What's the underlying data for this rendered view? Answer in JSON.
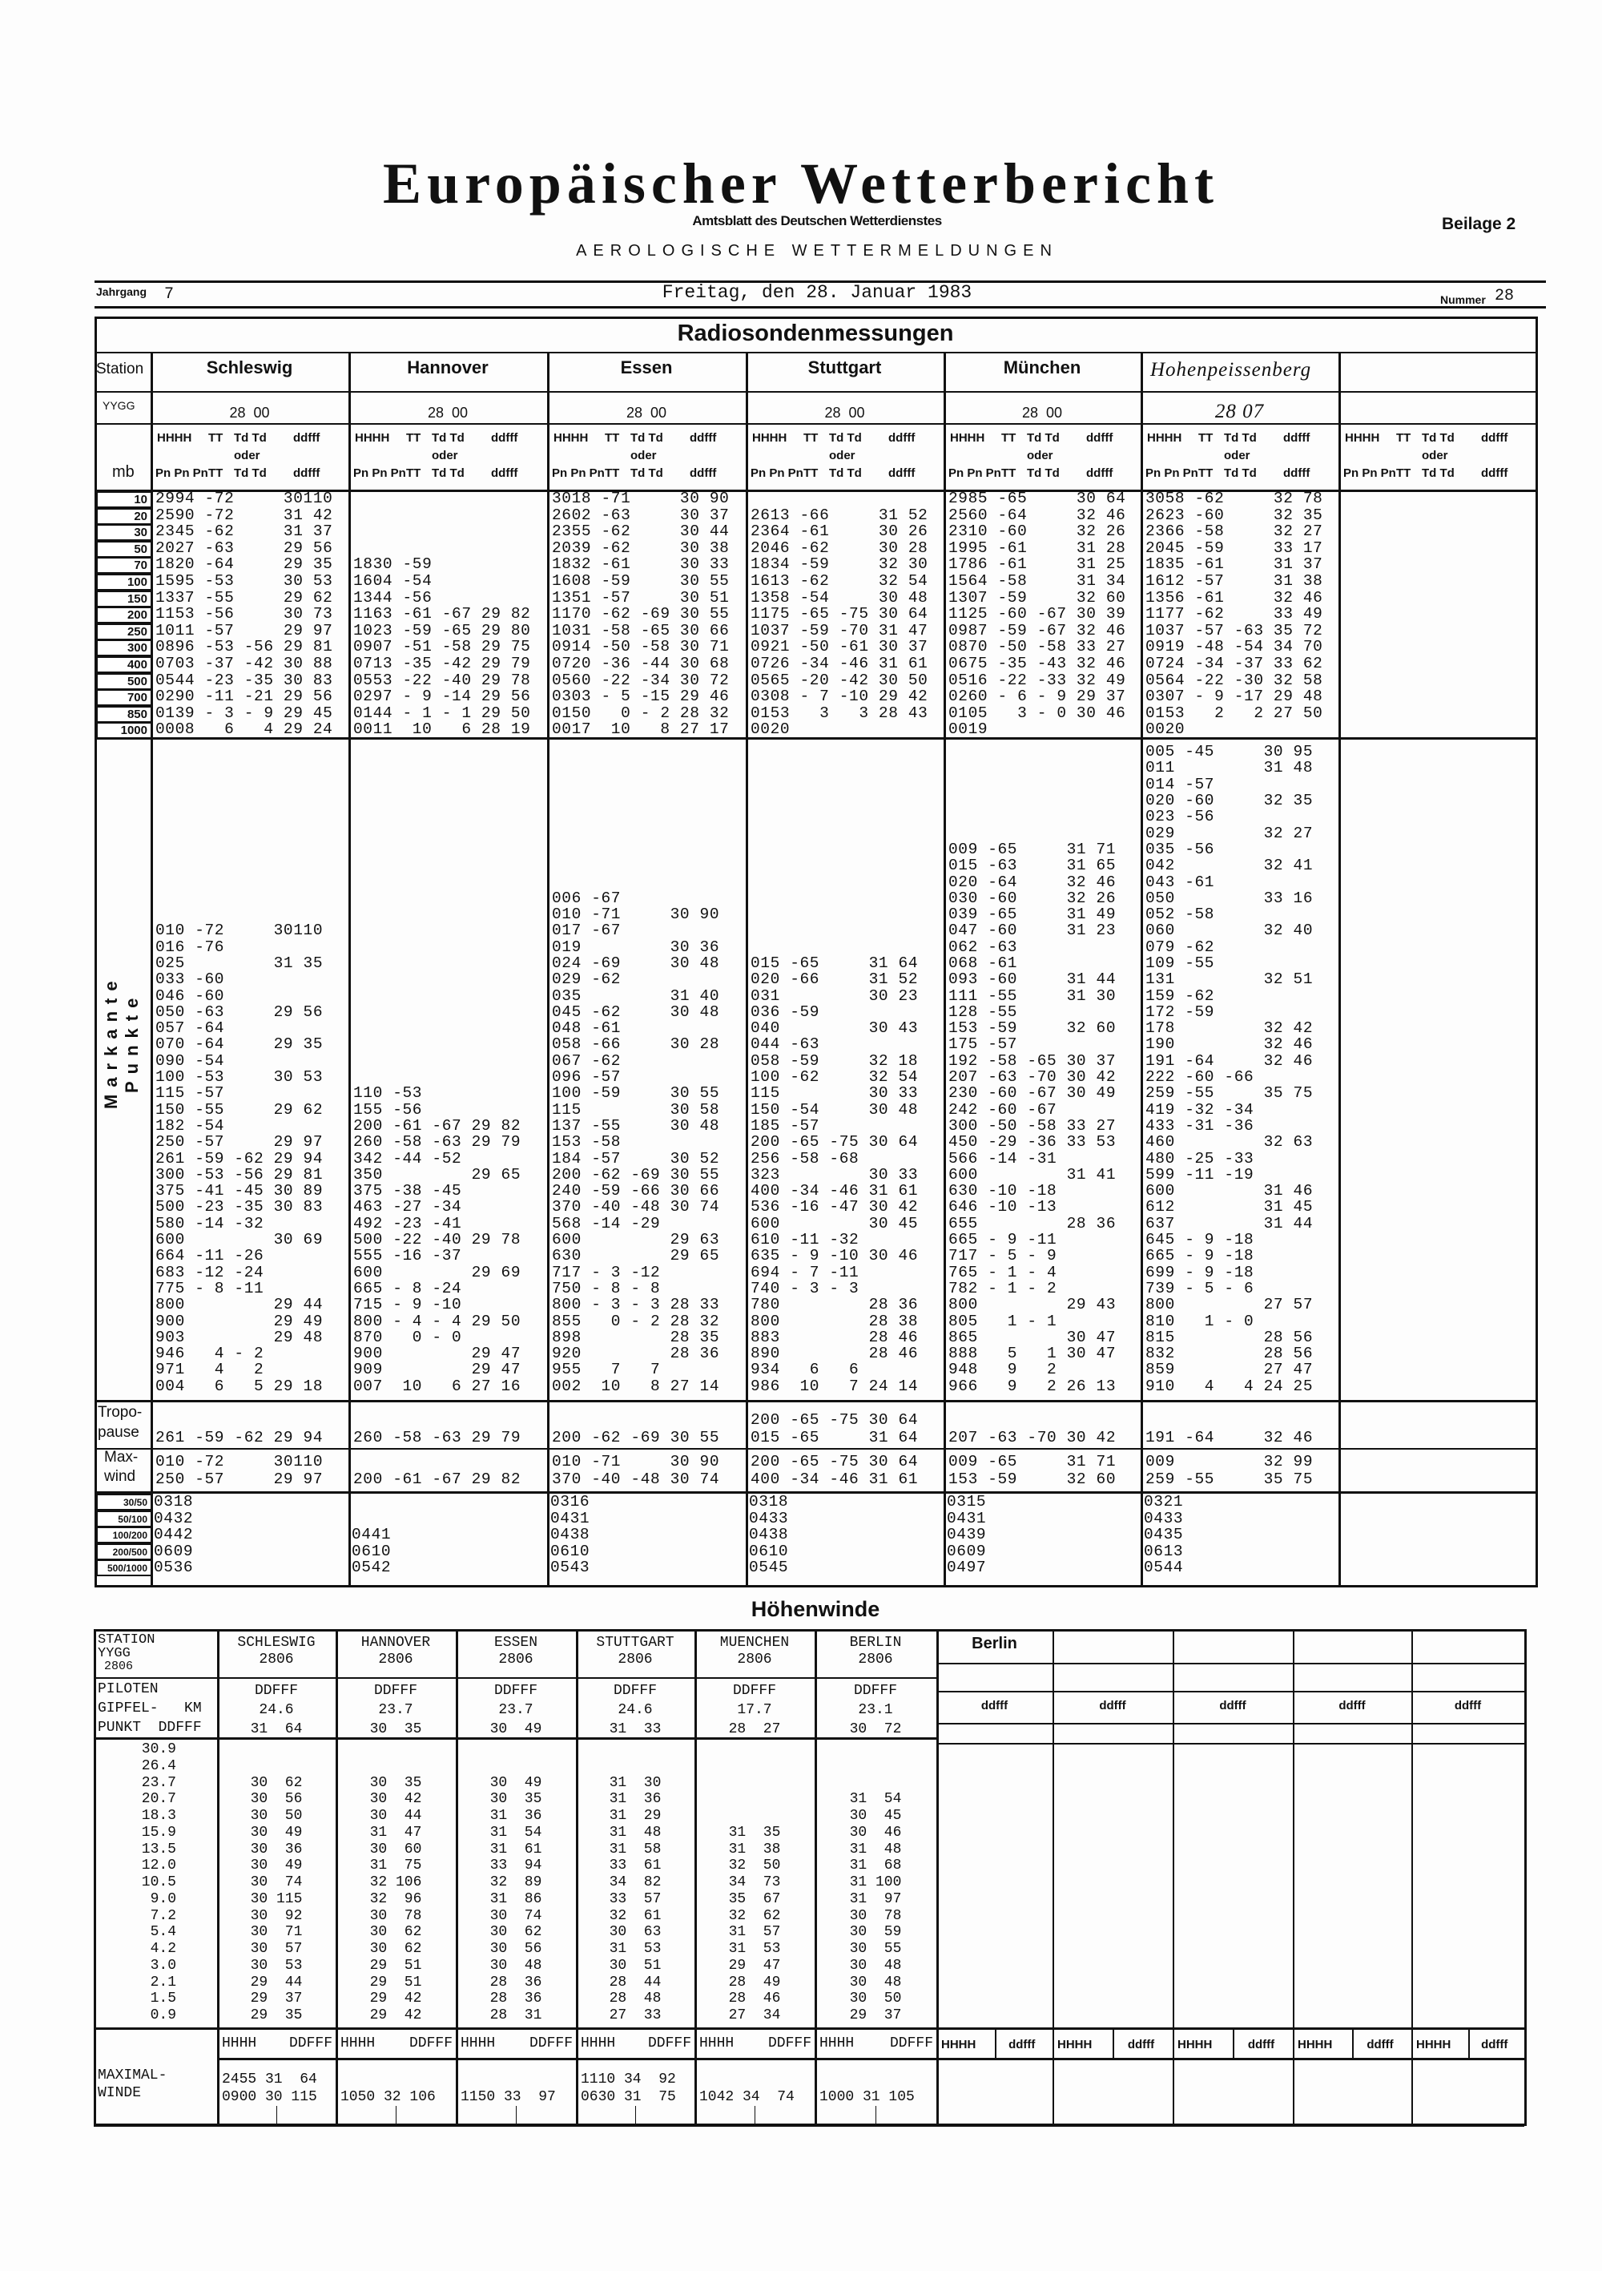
{
  "header": {
    "title": "Europäischer Wetterbericht",
    "subtitle": "Amtsblatt des Deutschen Wetterdienstes",
    "supplement": "Beilage 2",
    "section_heading": "AEROLOGISCHE WETTERMELDUNGEN",
    "volume_label": "Jahrgang",
    "volume": "7",
    "date": "Freitag, den 28. Januar 1983",
    "number_label": "Nummer",
    "number": "28"
  },
  "radiosonde": {
    "title": "Radiosondenmessungen",
    "label_station": "Station",
    "label_yygg": "YYGG",
    "label_mb": "mb",
    "col_headers": {
      "line1": [
        "HHHH",
        "TT",
        "Td Td",
        "ddfff"
      ],
      "oder": "oder",
      "line2": [
        "Pn Pn Pn",
        "TT",
        "Td Td",
        "ddfff"
      ]
    },
    "levels": [
      "10",
      "20",
      "30",
      "50",
      "70",
      "100",
      "150",
      "200",
      "250",
      "300",
      "400",
      "500",
      "700",
      "850",
      "1000"
    ],
    "markante_label": "Markante Punkte",
    "tropopause_label": [
      "Tropo-",
      "pause"
    ],
    "maxwind_label": [
      "Max-",
      "wind"
    ],
    "layer_labels": [
      "30/50",
      "50/100",
      "100/200",
      "200/500",
      "500/1000"
    ],
    "stations": [
      {
        "name": "Schleswig",
        "yygg": "28  00",
        "standard": [
          "2994 -72     30110",
          "2590 -72     31 42",
          "2345 -62     31 37",
          "2027 -63     29 56",
          "1820 -64     29 35",
          "1595 -53     30 53",
          "1337 -55     29 62",
          "1153 -56     30 73",
          "1011 -57     29 97",
          "0896 -53 -56 29 81",
          "0703 -37 -42 30 88",
          "0544 -23 -35 30 83",
          "0290 -11 -21 29 56",
          "0139 - 3 - 9 29 45",
          "0008   6   4 29 24"
        ],
        "markante": [
          "010 -72     30110",
          "016 -76",
          "025         31 35",
          "033 -60",
          "046 -60",
          "050 -63     29 56",
          "057 -64",
          "070 -64     29 35",
          "090 -54",
          "100 -53     30 53",
          "115 -57",
          "150 -55     29 62",
          "182 -54",
          "250 -57     29 97",
          "261 -59 -62 29 94",
          "300 -53 -56 29 81",
          "375 -41 -45 30 89",
          "500 -23 -35 30 83",
          "580 -14 -32",
          "600         30 69",
          "664 -11 -26",
          "683 -12 -24",
          "775 - 8 -11",
          "800         29 44",
          "900         29 49",
          "903         29 48",
          "946   4 - 2",
          "971   4   2",
          "004   6   5 29 18"
        ],
        "tropopause": [
          "261 -59 -62 29 94"
        ],
        "maxwind": [
          "010 -72     30110",
          "250 -57     29 97"
        ],
        "layers": [
          "0318",
          "0432",
          "0442",
          "0609",
          "0536"
        ]
      },
      {
        "name": "Hannover",
        "yygg": "28  00",
        "standard": [
          "",
          "",
          "",
          "",
          "1830 -59",
          "1604 -54",
          "1344 -56",
          "1163 -61 -67 29 82",
          "1023 -59 -65 29 80",
          "0907 -51 -58 29 75",
          "0713 -35 -42 29 79",
          "0553 -22 -40 29 78",
          "0297 - 9 -14 29 56",
          "0144 - 1 - 1 29 50",
          "0011  10   6 28 19"
        ],
        "markante": [
          "110 -53",
          "155 -56",
          "200 -61 -67 29 82",
          "260 -58 -63 29 79",
          "342 -44 -52",
          "350         29 65",
          "375 -38 -45",
          "463 -27 -34",
          "492 -23 -41",
          "500 -22 -40 29 78",
          "555 -16 -37",
          "600         29 69",
          "665 - 8 -24",
          "715 - 9 -10",
          "800 - 4 - 4 29 50",
          "870   0 - 0",
          "900         29 47",
          "909         29 47",
          "007  10   6 27 16"
        ],
        "tropopause": [
          "260 -58 -63 29 79"
        ],
        "maxwind": [
          "",
          "200 -61 -67 29 82"
        ],
        "layers": [
          "",
          "",
          "0441",
          "0610",
          "0542"
        ]
      },
      {
        "name": "Essen",
        "yygg": "28  00",
        "standard": [
          "3018 -71     30 90",
          "2602 -63     30 37",
          "2355 -62     30 44",
          "2039 -62     30 38",
          "1832 -61     30 33",
          "1608 -59     30 55",
          "1351 -57     30 51",
          "1170 -62 -69 30 55",
          "1031 -58 -65 30 66",
          "0914 -50 -58 30 71",
          "0720 -36 -44 30 68",
          "0560 -22 -34 30 72",
          "0303 - 5 -15 29 46",
          "0150   0 - 2 28 32",
          "0017  10   8 27 17"
        ],
        "markante": [
          "006 -67",
          "010 -71     30 90",
          "017 -67",
          "019         30 36",
          "024 -69     30 48",
          "029 -62",
          "035         31 40",
          "045 -62     30 48",
          "048 -61",
          "058 -66     30 28",
          "067 -62",
          "096 -57",
          "100 -59     30 55",
          "115         30 58",
          "137 -55     30 48",
          "153 -58",
          "184 -57     30 52",
          "200 -62 -69 30 55",
          "240 -59 -66 30 66",
          "370 -40 -48 30 74",
          "568 -14 -29",
          "600         29 63",
          "630         29 65",
          "717 - 3 -12",
          "750 - 8 - 8",
          "800 - 3 - 3 28 33",
          "855   0 - 2 28 32",
          "898         28 35",
          "920         28 36",
          "955   7   7",
          "002  10   8 27 14"
        ],
        "tropopause": [
          "200 -62 -69 30 55"
        ],
        "maxwind": [
          "010 -71     30 90",
          "370 -40 -48 30 74"
        ],
        "layers": [
          "0316",
          "0431",
          "0438",
          "0610",
          "0543"
        ]
      },
      {
        "name": "Stuttgart",
        "yygg": "28  00",
        "standard": [
          "",
          "2613 -66     31 52",
          "2364 -61     30 26",
          "2046 -62     30 28",
          "1834 -59     32 30",
          "1613 -62     32 54",
          "1358 -54     30 48",
          "1175 -65 -75 30 64",
          "1037 -59 -70 31 47",
          "0921 -50 -61 30 37",
          "0726 -34 -46 31 61",
          "0565 -20 -42 30 50",
          "0308 - 7 -10 29 42",
          "0153   3   3 28 43",
          "0020"
        ],
        "markante": [
          "015 -65     31 64",
          "020 -66     31 52",
          "031         30 23",
          "036 -59",
          "040         30 43",
          "044 -63",
          "058 -59     32 18",
          "100 -62     32 54",
          "115         30 33",
          "150 -54     30 48",
          "185 -57",
          "200 -65 -75 30 64",
          "256 -58 -68",
          "323         30 33",
          "400 -34 -46 31 61",
          "536 -16 -47 30 42",
          "600         30 45",
          "610 -11 -32",
          "635 - 9 -10 30 46",
          "694 - 7 -11",
          "740 - 3 - 3",
          "780         28 36",
          "800         28 38",
          "883         28 46",
          "890         28 46",
          "934   6   6",
          "986  10   7 24 14"
        ],
        "tropopause": [
          "200 -65 -75 30 64",
          "015 -65     31 64"
        ],
        "maxwind": [
          "200 -65 -75 30 64",
          "400 -34 -46 31 61"
        ],
        "layers": [
          "0318",
          "0433",
          "0438",
          "0610",
          "0545"
        ]
      },
      {
        "name": "München",
        "yygg": "28  00",
        "standard": [
          "2985 -65     30 64",
          "2560 -64     32 46",
          "2310 -60     32 26",
          "1995 -61     31 28",
          "1786 -61     31 25",
          "1564 -58     31 34",
          "1307 -59     32 60",
          "1125 -60 -67 30 39",
          "0987 -59 -67 32 46",
          "0870 -50 -58 33 27",
          "0675 -35 -43 32 46",
          "0516 -22 -33 32 49",
          "0260 - 6 - 9 29 37",
          "0105   3 - 0 30 46",
          "0019"
        ],
        "markante": [
          "009 -65     31 71",
          "015 -63     31 65",
          "020 -64     32 46",
          "030 -60     32 26",
          "039 -65     31 49",
          "047 -60     31 23",
          "062 -63",
          "068 -61",
          "093 -60     31 44",
          "111 -55     31 30",
          "128 -55",
          "153 -59     32 60",
          "175 -57",
          "192 -58 -65 30 37",
          "207 -63 -70 30 42",
          "230 -60 -67 30 49",
          "242 -60 -67",
          "300 -50 -58 33 27",
          "450 -29 -36 33 53",
          "566 -14 -31",
          "600         31 41",
          "630 -10 -18",
          "646 -10 -13",
          "655         28 36",
          "665 - 9 -11",
          "717 - 5 - 9",
          "765 - 1 - 4",
          "782 - 1 - 2",
          "800         29 43",
          "805   1 - 1",
          "865         30 47",
          "888   5   1 30 47",
          "948   9   2",
          "966   9   2 26 13"
        ],
        "tropopause": [
          "207 -63 -70 30 42"
        ],
        "maxwind": [
          "009 -65     31 71",
          "153 -59     32 60"
        ],
        "layers": [
          "0315",
          "0431",
          "0439",
          "0609",
          "0497"
        ]
      },
      {
        "name": "Hohenpeissenberg",
        "yygg": "28 07",
        "standard": [
          "3058 -62     32 78",
          "2623 -60     32 35",
          "2366 -58     32 27",
          "2045 -59     33 17",
          "1835 -61     31 37",
          "1612 -57     31 38",
          "1356 -61     32 46",
          "1177 -62     33 49",
          "1037 -57 -63 35 72",
          "0919 -48 -54 34 70",
          "0724 -34 -37 33 62",
          "0564 -22 -30 32 58",
          "0307 - 9 -17 29 48",
          "0153   2   2 27 50",
          "0020"
        ],
        "markante": [
          "005 -45     30 95",
          "011         31 48",
          "014 -57",
          "020 -60     32 35",
          "023 -56",
          "029         32 27",
          "035 -56",
          "042         32 41",
          "043 -61",
          "050         33 16",
          "052 -58",
          "060         32 40",
          "079 -62",
          "109 -55",
          "131         32 51",
          "159 -62",
          "172 -59",
          "178         32 42",
          "190         32 46",
          "191 -64     32 46",
          "222 -60 -66",
          "259 -55     35 75",
          "419 -32 -34",
          "433 -31 -36",
          "460         32 63",
          "480 -25 -33",
          "599 -11 -19",
          "600         31 46",
          "612         31 45",
          "637         31 44",
          "645 - 9 -18",
          "665 - 9 -18",
          "699 - 9 -18",
          "739 - 5 - 6",
          "800         27 57",
          "810   1 - 0",
          "815         28 56",
          "832         28 56",
          "859         27 47",
          "910   4   4 24 25"
        ],
        "tropopause": [
          "191 -64     32 46"
        ],
        "maxwind": [
          "009         32 99",
          "259 -55     35 75"
        ],
        "layers": [
          "0321",
          "0433",
          "0435",
          "0613",
          "0544"
        ]
      }
    ]
  },
  "hoehenwinde": {
    "title": "Höhenwinde",
    "label_lines": [
      "STATION",
      "YYGG",
      "2806"
    ],
    "piloten_lines": [
      "PILOTEN",
      "GIPFEL-   KM",
      "PUNKT  DDFFF"
    ],
    "heights": [
      "30.9",
      "26.4",
      "23.7",
      "20.7",
      "18.3",
      "15.9",
      "13.5",
      "12.0",
      "10.5",
      "9.0",
      "7.2",
      "5.4",
      "4.2",
      "3.0",
      "2.1",
      "1.5",
      "0.9"
    ],
    "max_header": [
      "HHHH",
      "DDFFF"
    ],
    "maxwinde_label": [
      "MAXIMAL-",
      "WINDE"
    ],
    "stations": [
      {
        "name": "SCHLESWIG",
        "yygg": "2806",
        "code": "DDFFF",
        "gipfel_km": "24.6",
        "gipfel_ddfff": "31  64",
        "winds": [
          "",
          "",
          "30  62",
          "30  56",
          "30  50",
          "30  49",
          "30  36",
          "30  49",
          "30  74",
          "30 115",
          "30  92",
          "30  71",
          "30  57",
          "30  53",
          "29  44",
          "29  37",
          "29  35"
        ],
        "max": [
          "2455 31  64",
          "0900 30 115"
        ]
      },
      {
        "name": "HANNOVER",
        "yygg": "2806",
        "code": "DDFFF",
        "gipfel_km": "23.7",
        "gipfel_ddfff": "30  35",
        "winds": [
          "",
          "",
          "30  35",
          "30  42",
          "30  44",
          "31  47",
          "30  60",
          "31  75",
          "32 106",
          "32  96",
          "30  78",
          "30  62",
          "30  62",
          "29  51",
          "29  51",
          "29  42",
          "29  42"
        ],
        "max": [
          "",
          "1050 32 106"
        ]
      },
      {
        "name": "ESSEN",
        "yygg": "2806",
        "code": "DDFFF",
        "gipfel_km": "23.7",
        "gipfel_ddfff": "30  49",
        "winds": [
          "",
          "",
          "30  49",
          "30  35",
          "31  36",
          "31  54",
          "31  61",
          "33  94",
          "32  89",
          "31  86",
          "30  74",
          "30  62",
          "30  56",
          "30  48",
          "28  36",
          "28  36",
          "28  31"
        ],
        "max": [
          "",
          "1150 33  97"
        ]
      },
      {
        "name": "STUTTGART",
        "yygg": "2806",
        "code": "DDFFF",
        "gipfel_km": "24.6",
        "gipfel_ddfff": "31  33",
        "winds": [
          "",
          "",
          "31  30",
          "31  36",
          "31  29",
          "31  48",
          "31  58",
          "33  61",
          "34  82",
          "33  57",
          "32  61",
          "30  63",
          "31  53",
          "30  51",
          "28  44",
          "28  48",
          "27  33"
        ],
        "max": [
          "1110 34  92",
          "0630 31  75"
        ]
      },
      {
        "name": "MUENCHEN",
        "yygg": "2806",
        "code": "DDFFF",
        "gipfel_km": "17.7",
        "gipfel_ddfff": "28  27",
        "winds": [
          "",
          "",
          "",
          "",
          "",
          "31  35",
          "31  38",
          "32  50",
          "34  73",
          "35  67",
          "32  62",
          "31  57",
          "31  53",
          "29  47",
          "28  49",
          "28  46",
          "27  34"
        ],
        "max": [
          "",
          "1042 34  74"
        ]
      },
      {
        "name": "BERLIN",
        "yygg": "2806",
        "code": "DDFFF",
        "gipfel_km": "23.1",
        "gipfel_ddfff": "30  72",
        "winds": [
          "",
          "",
          "",
          "31  54",
          "30  45",
          "30  46",
          "31  48",
          "31  68",
          "31 100",
          "31  97",
          "30  78",
          "30  59",
          "30  55",
          "30  48",
          "30  48",
          "30  50",
          "29  37"
        ],
        "max": [
          "",
          "1000 31 105"
        ]
      }
    ],
    "right_panel": {
      "station": "Berlin",
      "col_label": "ddfff",
      "max_labels": [
        "HHHH",
        "ddfff"
      ]
    }
  }
}
